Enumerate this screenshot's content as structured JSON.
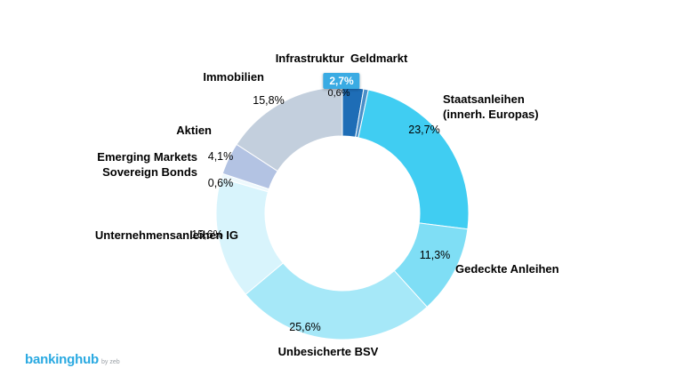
{
  "chart_data": {
    "type": "pie",
    "subtype": "donut",
    "title": "",
    "unit": "%",
    "direction": "clockwise",
    "start_angle_deg": 0,
    "legend_position": "none",
    "slices": [
      {
        "label": "Infrastruktur",
        "value": 2.7,
        "pct_label": "2,7%",
        "color": "#1e6db6",
        "highlighted": true
      },
      {
        "label": "Geldmarkt",
        "value": 0.6,
        "pct_label": "0,6%",
        "color": "#4a90c9",
        "highlighted": false
      },
      {
        "label": "Staatsanleihen (innerh. Europas)",
        "value": 23.7,
        "pct_label": "23,7%",
        "color": "#40cdf2",
        "highlighted": false
      },
      {
        "label": "Gedeckte Anleihen",
        "value": 11.3,
        "pct_label": "11,3%",
        "color": "#7fdef5",
        "highlighted": false
      },
      {
        "label": "Unbesicherte BSV",
        "value": 25.6,
        "pct_label": "25,6%",
        "color": "#a6e8f8",
        "highlighted": false
      },
      {
        "label": "Unternehmensanleihen IG",
        "value": 15.6,
        "pct_label": "15,6%",
        "color": "#d8f4fc",
        "highlighted": false
      },
      {
        "label": "Emerging Markets Sovereign Bonds",
        "value": 0.6,
        "pct_label": "0,6%",
        "color": "#eef9fd",
        "highlighted": false
      },
      {
        "label": "Aktien",
        "value": 4.1,
        "pct_label": "4,1%",
        "color": "#b3c3e3",
        "highlighted": false
      },
      {
        "label": "Immobilien",
        "value": 15.8,
        "pct_label": "15,8%",
        "color": "#c3cfdd",
        "highlighted": false
      }
    ]
  },
  "labels": {
    "infrastruktur": "Infrastruktur",
    "geldmarkt": "Geldmarkt",
    "staatsanleihen_l1": "Staatsanleihen",
    "staatsanleihen_l2": "(innerh. Europas)",
    "gedeckte": "Gedeckte Anleihen",
    "unbesicherte": "Unbesicherte BSV",
    "unternehmensanleihen": "Unternehmensanleihen IG",
    "emerging_l1": "Emerging Markets",
    "emerging_l2": "Sovereign Bonds",
    "aktien": "Aktien",
    "immobilien": "Immobilien"
  },
  "logo": {
    "brand": "bankinghub",
    "byline": "by zeb"
  }
}
